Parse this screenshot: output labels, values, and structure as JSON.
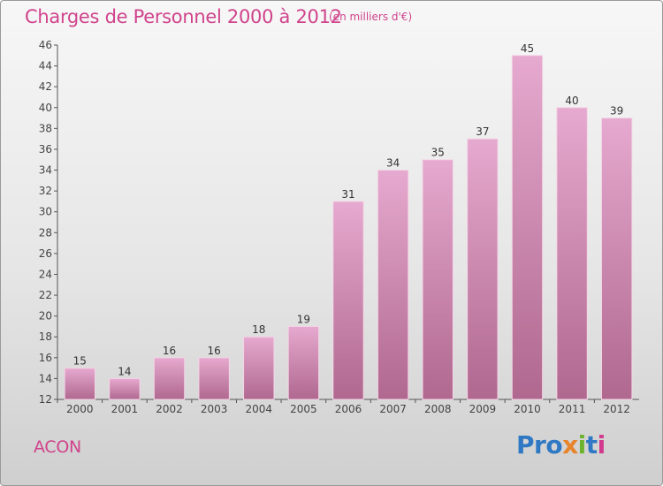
{
  "header": {
    "title": "Charges de Personnel 2000 à 2012",
    "unit": "(en milliers d'€)"
  },
  "footer": {
    "commune": "ACON",
    "logo": [
      "Pro",
      "x",
      "i",
      "t",
      "i"
    ]
  },
  "colors": {
    "accent": "#d0438c",
    "bar_top": "#e6a9cf",
    "bar_bottom": "#b0688f"
  },
  "chart_data": {
    "type": "bar",
    "title": "Charges de Personnel 2000 à 2012",
    "subtitle": "(en milliers d'€)",
    "categories": [
      "2000",
      "2001",
      "2002",
      "2003",
      "2004",
      "2005",
      "2006",
      "2007",
      "2008",
      "2009",
      "2010",
      "2011",
      "2012"
    ],
    "values": [
      15,
      14,
      16,
      16,
      18,
      19,
      31,
      34,
      35,
      37,
      45,
      40,
      39
    ],
    "ylim": [
      12,
      46
    ],
    "yticks": [
      12,
      14,
      16,
      18,
      20,
      22,
      24,
      26,
      28,
      30,
      32,
      34,
      36,
      38,
      40,
      42,
      44,
      46
    ],
    "grid": false,
    "data_labels": true
  }
}
